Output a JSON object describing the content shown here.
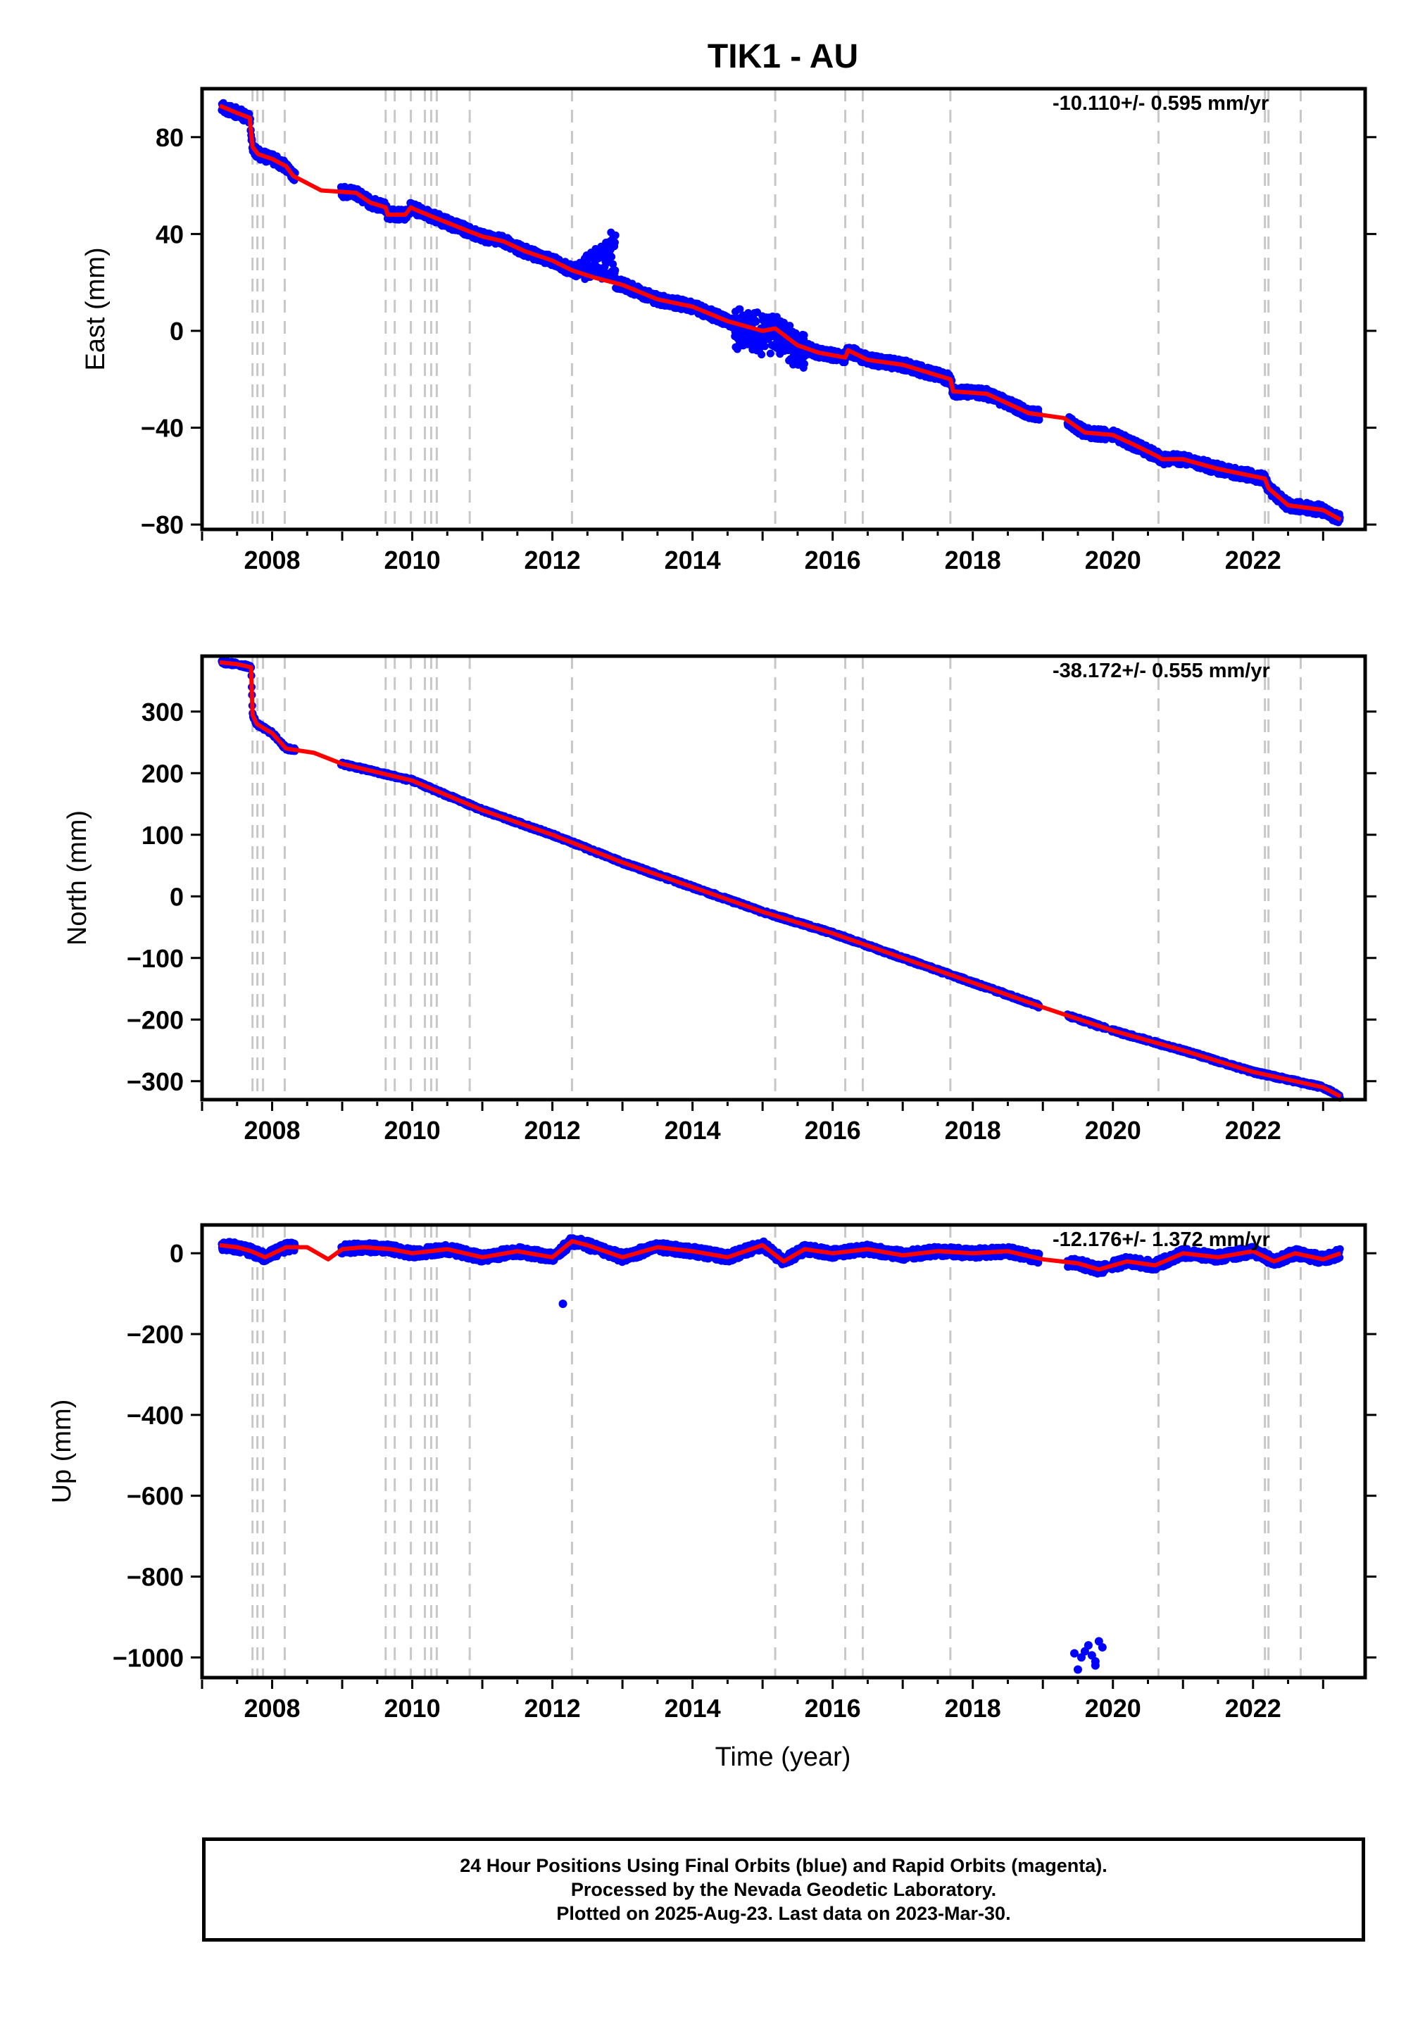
{
  "chart_data": {
    "type": "scatter",
    "title": "TIK1 - AU",
    "xlabel": "Time (year)",
    "xlim": [
      2007.0,
      2023.6
    ],
    "x_ticks": [
      2008,
      2010,
      2012,
      2014,
      2016,
      2018,
      2020,
      2022
    ],
    "x_tick_labels": [
      "2008",
      "2010",
      "2012",
      "2014",
      "2016",
      "2018",
      "2020",
      "2022"
    ],
    "event_lines": [
      2007.72,
      2007.79,
      2007.87,
      2008.18,
      2009.62,
      2009.75,
      2009.98,
      2010.18,
      2010.27,
      2010.35,
      2010.82,
      2012.28,
      2015.18,
      2016.18,
      2016.43,
      2017.68,
      2020.65,
      2022.17,
      2022.22,
      2022.68
    ],
    "colors": {
      "data": "#0000ff",
      "model": "#ff0000",
      "event_line": "#c8c8c8"
    },
    "legend": "none",
    "grid": false,
    "panels": [
      {
        "name": "east",
        "ylabel": "East (mm)",
        "ylim": [
          -82,
          100
        ],
        "y_ticks": [
          80,
          40,
          0,
          -40,
          -80
        ],
        "y_tick_labels": [
          "80",
          "40",
          "0",
          "−40",
          "−80"
        ],
        "rate_text": "-10.110+/- 0.595 mm/yr",
        "model": {
          "x": [
            2007.25,
            2007.5,
            2007.68,
            2007.72,
            2007.8,
            2008.0,
            2008.2,
            2008.3,
            2008.7,
            2009.2,
            2009.4,
            2009.62,
            2009.65,
            2009.9,
            2009.98,
            2010.05,
            2010.3,
            2010.82,
            2011.0,
            2011.3,
            2011.6,
            2012.0,
            2012.28,
            2012.6,
            2013.0,
            2013.5,
            2014.0,
            2014.5,
            2015.0,
            2015.18,
            2015.5,
            2015.8,
            2016.18,
            2016.22,
            2016.5,
            2017.0,
            2017.68,
            2017.72,
            2018.2,
            2018.8,
            2019.3,
            2019.6,
            2020.0,
            2020.3,
            2020.65,
            2020.7,
            2021.0,
            2021.5,
            2022.17,
            2022.22,
            2022.5,
            2023.0,
            2023.25
          ],
          "y": [
            93,
            90,
            88,
            76,
            73,
            71,
            68,
            64,
            58,
            57,
            53,
            51,
            48,
            48,
            51,
            50,
            47,
            41,
            39,
            37,
            33,
            29,
            25,
            22,
            19,
            13,
            10,
            4,
            0,
            1,
            -6,
            -9,
            -11,
            -8,
            -12,
            -14,
            -20,
            -25,
            -26,
            -34,
            -36,
            -42,
            -43,
            -47,
            -52,
            -53,
            -53,
            -57,
            -61,
            -65,
            -72,
            -74,
            -78
          ]
        },
        "outlier_points": {
          "x": [],
          "y": []
        }
      },
      {
        "name": "north",
        "ylabel": "North (mm)",
        "ylim": [
          -330,
          390
        ],
        "y_ticks": [
          300,
          200,
          100,
          0,
          -100,
          -200,
          -300
        ],
        "y_tick_labels": [
          "300",
          "200",
          "100",
          "0",
          "−100",
          "−200",
          "−300"
        ],
        "rate_text": "-38.172+/- 0.555 mm/yr",
        "model": {
          "x": [
            2007.25,
            2007.5,
            2007.7,
            2007.72,
            2007.78,
            2008.0,
            2008.2,
            2008.6,
            2009.0,
            2010.0,
            2011.0,
            2012.0,
            2013.0,
            2014.0,
            2015.0,
            2016.0,
            2017.0,
            2018.0,
            2019.0,
            2020.0,
            2021.0,
            2022.0,
            2023.0,
            2023.25
          ],
          "y": [
            380,
            377,
            372,
            295,
            280,
            265,
            240,
            233,
            215,
            188,
            140,
            100,
            55,
            15,
            -25,
            -60,
            -100,
            -140,
            -180,
            -218,
            -250,
            -285,
            -310,
            -325
          ]
        },
        "outlier_points": {
          "x": [],
          "y": []
        }
      },
      {
        "name": "up",
        "ylabel": "Up (mm)",
        "ylim": [
          -1050,
          70
        ],
        "y_ticks": [
          0,
          -200,
          -400,
          -600,
          -800,
          -1000
        ],
        "y_tick_labels": [
          "0",
          "−200",
          "−400",
          "−600",
          "−800",
          "−1000"
        ],
        "rate_text": "-12.176+/- 1.372 mm/yr",
        "model": {
          "x": [
            2007.25,
            2007.5,
            2007.7,
            2007.9,
            2008.2,
            2008.5,
            2008.8,
            2009.0,
            2009.3,
            2009.7,
            2010.0,
            2010.5,
            2011.0,
            2011.5,
            2012.0,
            2012.28,
            2012.5,
            2013.0,
            2013.5,
            2014.0,
            2014.5,
            2015.0,
            2015.3,
            2015.6,
            2016.0,
            2016.5,
            2017.0,
            2017.5,
            2018.0,
            2018.5,
            2019.0,
            2019.5,
            2019.8,
            2020.2,
            2020.6,
            2021.0,
            2021.5,
            2022.0,
            2022.3,
            2022.6,
            2023.0,
            2023.25
          ],
          "y": [
            20,
            15,
            5,
            -10,
            15,
            15,
            -15,
            10,
            15,
            10,
            0,
            10,
            -10,
            5,
            -10,
            30,
            20,
            -10,
            15,
            5,
            -10,
            20,
            -20,
            10,
            0,
            10,
            -5,
            5,
            0,
            5,
            -15,
            -25,
            -40,
            -20,
            -30,
            0,
            -10,
            5,
            -20,
            0,
            -15,
            0
          ]
        },
        "outlier_points": {
          "x": [
            2012.15,
            2019.45,
            2019.5,
            2019.6,
            2019.65,
            2019.7,
            2019.75,
            2019.8,
            2019.85,
            2019.55,
            2019.75
          ],
          "y": [
            -125,
            -990,
            -1030,
            -985,
            -970,
            -995,
            -1010,
            -960,
            -975,
            -1000,
            -1020
          ]
        }
      }
    ]
  },
  "footer": {
    "line1": "24 Hour Positions Using Final Orbits (blue) and Rapid Orbits (magenta).",
    "line2": "Processed by the Nevada Geodetic Laboratory.",
    "line3": "Plotted on 2025-Aug-23. Last data on 2023-Mar-30."
  }
}
